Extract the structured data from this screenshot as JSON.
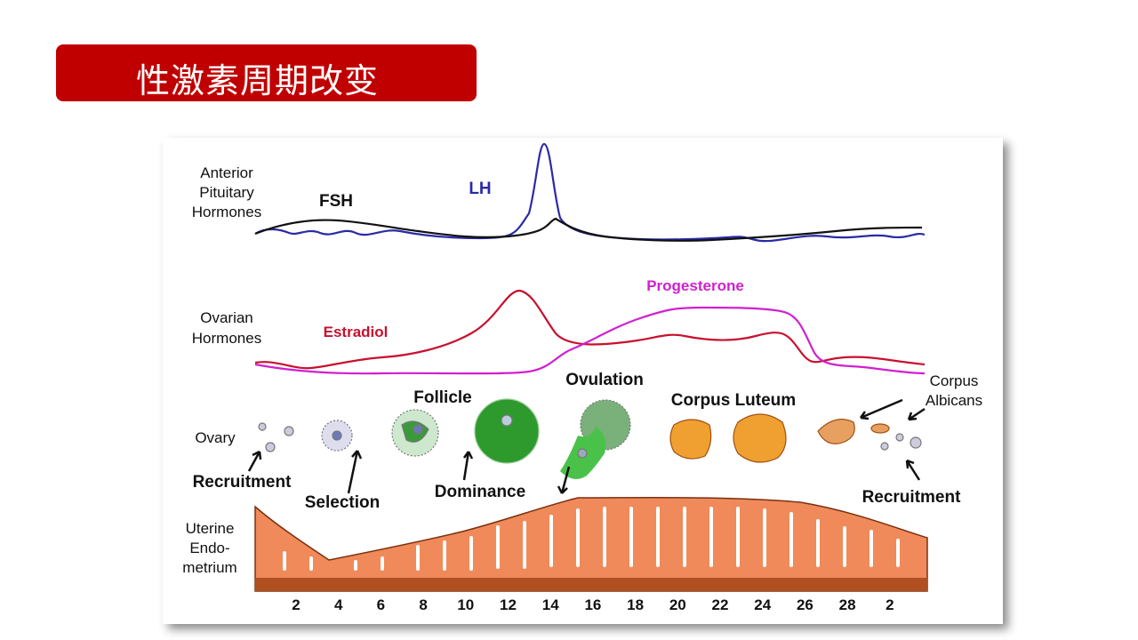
{
  "header": {
    "title": "性激素周期改变"
  },
  "diagram": {
    "pituitary_label": [
      "Anterior",
      "Pituitary",
      "Hormones"
    ],
    "fsh": "FSH",
    "lh": "LH",
    "ovarian_label": [
      "Ovarian",
      "Hormones"
    ],
    "estradiol": "Estradiol",
    "progesterone": "Progesterone",
    "stages": {
      "follicle": "Follicle",
      "ovulation": "Ovulation",
      "corpus_luteum": "Corpus Luteum",
      "corpus_albicans": [
        "Corpus",
        "Albicans"
      ]
    },
    "ovary_label": "Ovary",
    "phases": [
      "Recruitment",
      "Selection",
      "Dominance",
      "Recruitment"
    ],
    "uterine_label": [
      "Uterine",
      "Endo-",
      "metrium"
    ],
    "days": [
      2,
      4,
      6,
      8,
      10,
      12,
      14,
      16,
      18,
      20,
      22,
      24,
      26,
      28,
      2
    ]
  }
}
